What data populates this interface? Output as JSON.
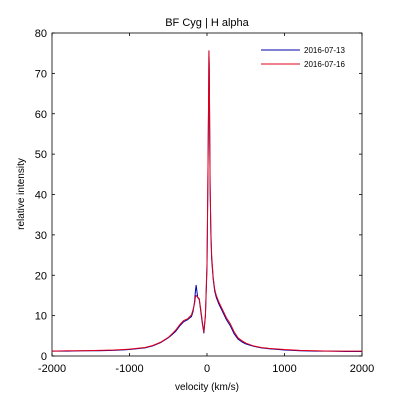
{
  "chart_data": {
    "type": "line",
    "title": "BF Cyg | H alpha",
    "xlabel": "velocity (km/s)",
    "ylabel": "relative intensity",
    "xlim": [
      -2000,
      2000
    ],
    "ylim": [
      0,
      80
    ],
    "xticks": [
      -2000,
      -1000,
      0,
      1000,
      2000
    ],
    "yticks": [
      0,
      10,
      20,
      30,
      40,
      50,
      60,
      70,
      80
    ],
    "grid": false,
    "legend_position": "top-right",
    "series": [
      {
        "name": "2016-07-13",
        "color": "#0000a8",
        "x": [
          -2000,
          -1800,
          -1600,
          -1400,
          -1200,
          -1000,
          -800,
          -700,
          -600,
          -500,
          -450,
          -400,
          -350,
          -300,
          -250,
          -200,
          -180,
          -160,
          -150,
          -140,
          -130,
          -120,
          -100,
          -80,
          -60,
          -40,
          -20,
          0,
          10,
          20,
          25,
          30,
          35,
          40,
          50,
          60,
          80,
          100,
          120,
          150,
          200,
          250,
          300,
          350,
          400,
          450,
          500,
          600,
          700,
          800,
          1000,
          1200,
          1400,
          1600,
          1800,
          2000
        ],
        "y": [
          1.2,
          1.2,
          1.3,
          1.3,
          1.4,
          1.6,
          2.0,
          2.5,
          3.3,
          4.5,
          5.3,
          6.2,
          7.5,
          8.5,
          9.0,
          9.8,
          11.0,
          13.5,
          16.0,
          17.5,
          16.0,
          14.5,
          14.0,
          11.0,
          8.0,
          5.7,
          10.0,
          22.0,
          40.0,
          62.0,
          75.5,
          70.0,
          55.0,
          42.0,
          30.0,
          24.0,
          19.0,
          16.0,
          14.5,
          13.0,
          11.0,
          9.0,
          7.5,
          5.5,
          4.2,
          3.5,
          3.0,
          2.4,
          2.0,
          1.8,
          1.5,
          1.3,
          1.2,
          1.2,
          1.1,
          1.1
        ]
      },
      {
        "name": "2016-07-16",
        "color": "#e0001b",
        "x": [
          -2000,
          -1800,
          -1600,
          -1400,
          -1200,
          -1000,
          -800,
          -700,
          -600,
          -500,
          -450,
          -400,
          -350,
          -300,
          -250,
          -200,
          -180,
          -160,
          -150,
          -140,
          -130,
          -120,
          -100,
          -80,
          -60,
          -40,
          -20,
          0,
          10,
          20,
          25,
          30,
          35,
          40,
          50,
          60,
          80,
          100,
          120,
          150,
          200,
          250,
          300,
          350,
          400,
          450,
          500,
          600,
          700,
          800,
          1000,
          1200,
          1400,
          1600,
          1800,
          2000
        ],
        "y": [
          1.2,
          1.3,
          1.3,
          1.4,
          1.5,
          1.7,
          2.1,
          2.6,
          3.4,
          4.6,
          5.5,
          6.5,
          7.8,
          8.8,
          9.2,
          10.2,
          11.5,
          13.0,
          14.5,
          15.0,
          14.8,
          14.6,
          14.2,
          11.5,
          8.5,
          6.0,
          10.5,
          23.0,
          41.0,
          63.0,
          75.6,
          71.0,
          56.0,
          43.0,
          31.0,
          25.0,
          19.5,
          16.5,
          15.0,
          13.5,
          11.5,
          9.5,
          8.0,
          6.0,
          4.5,
          3.8,
          3.2,
          2.5,
          2.1,
          1.9,
          1.6,
          1.4,
          1.3,
          1.2,
          1.2,
          1.2
        ]
      }
    ]
  }
}
